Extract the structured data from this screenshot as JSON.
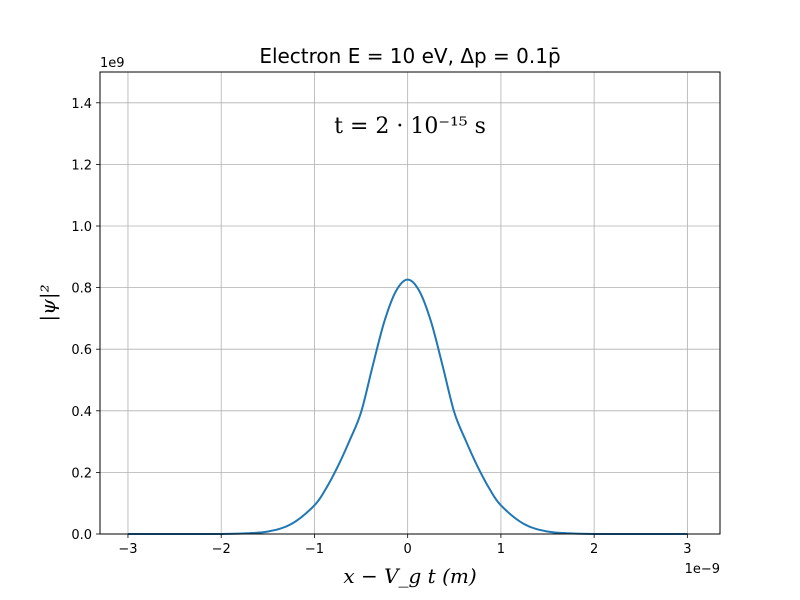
{
  "chart_data": {
    "type": "line",
    "title": "Electron E = 10 eV, Δp = 0.1p̄",
    "xlabel": "x − V_g t (m)",
    "ylabel": "|ψ|²",
    "annotation": "t = 2 · 10⁻¹⁵ s",
    "x_offset_label": "1e−9",
    "y_offset_label": "1e9",
    "xlim": [
      -3.3,
      3.35
    ],
    "ylim": [
      0,
      1.5
    ],
    "x_scale": 1e-09,
    "y_scale": 1000000000.0,
    "x_ticks": [
      -3,
      -2,
      -1,
      0,
      1,
      2,
      3
    ],
    "x_tick_labels": [
      "−3",
      "−2",
      "−1",
      "0",
      "1",
      "2",
      "3"
    ],
    "y_ticks": [
      0.0,
      0.2,
      0.4,
      0.6,
      0.8,
      1.0,
      1.2,
      1.4
    ],
    "y_tick_labels": [
      "0.0",
      "0.2",
      "0.4",
      "0.6",
      "0.8",
      "1.0",
      "1.2",
      "1.4"
    ],
    "grid": true,
    "series": [
      {
        "color": "#1f77b4",
        "x": [
          -3.0,
          -2.5,
          -2.0,
          -1.75,
          -1.5,
          -1.25,
          -1.0,
          -0.875,
          -0.75,
          -0.625,
          -0.5,
          -0.375,
          -0.25,
          -0.125,
          0.0,
          0.125,
          0.25,
          0.375,
          0.5,
          0.625,
          0.75,
          0.875,
          1.0,
          1.25,
          1.5,
          1.75,
          2.0,
          2.5,
          3.0
        ],
        "y": [
          0.0,
          0.0,
          0.0,
          0.002,
          0.008,
          0.032,
          0.093,
          0.148,
          0.219,
          0.302,
          0.395,
          0.546,
          0.69,
          0.789,
          0.826,
          0.789,
          0.69,
          0.546,
          0.395,
          0.302,
          0.219,
          0.148,
          0.093,
          0.032,
          0.008,
          0.002,
          0.0,
          0.0,
          0.0
        ]
      }
    ]
  }
}
